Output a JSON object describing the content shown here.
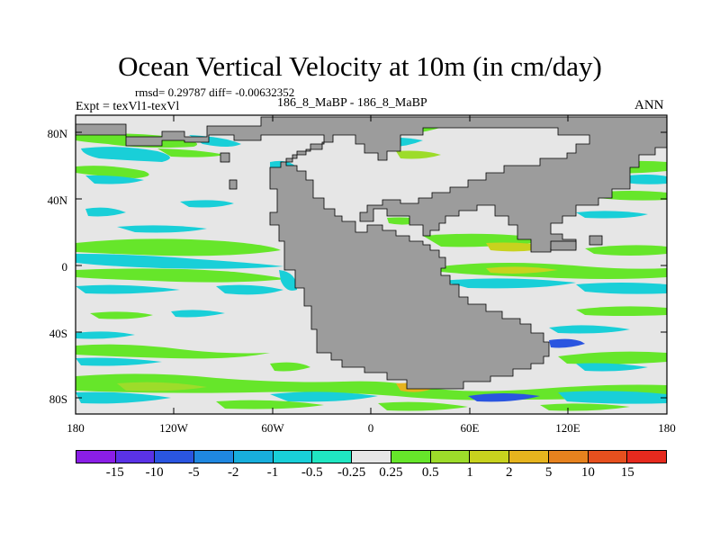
{
  "title": "Ocean Vertical Velocity at 10m (in cm/day)",
  "stats": "rmsd= 0.29787  diff= -0.00632352",
  "experiment": "Expt = texVl1-texVl",
  "case_label": "186_8_MaBP - 186_8_MaBP",
  "season": "ANN",
  "y_ticks": [
    "80N",
    "40N",
    "0",
    "40S",
    "80S"
  ],
  "x_ticks": [
    "180",
    "120W",
    "60W",
    "0",
    "60E",
    "120E",
    "180"
  ],
  "colorbar": {
    "labels": [
      "-15",
      "-10",
      "-5",
      "-2",
      "-1",
      "-0.5",
      "-0.25",
      "0.25",
      "0.5",
      "1",
      "2",
      "5",
      "10",
      "15"
    ],
    "colors": [
      "#8a1ee6",
      "#5a32e6",
      "#2a55e0",
      "#1f87e0",
      "#18aedc",
      "#19cfd8",
      "#20e6c2",
      "#e6e6e6",
      "#66e62a",
      "#9ddc2a",
      "#c8d21e",
      "#e6b41e",
      "#e6821e",
      "#e6501e",
      "#e62a1e"
    ]
  },
  "colors": {
    "land": "#9c9c9c",
    "ocean_neutral": "#e6e6e6",
    "upwelling_weak": "#66e62a",
    "downwelling_weak": "#19cfd8"
  }
}
